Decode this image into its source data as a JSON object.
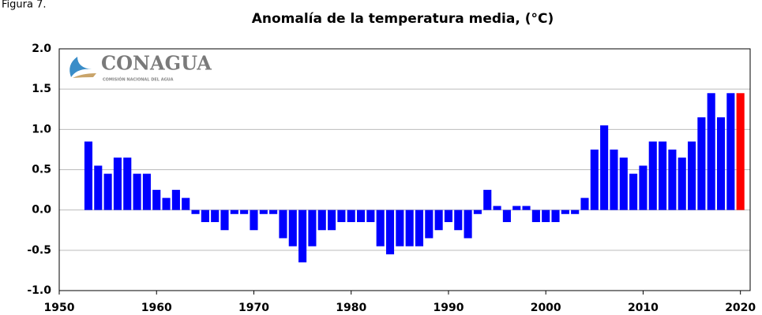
{
  "figure_label": "Figura 7.",
  "logo": {
    "name": "CONAGUA",
    "subtitle": "COMISIÓN NACIONAL DEL AGUA"
  },
  "chart_data": {
    "type": "bar",
    "title": "Anomalía de la temperatura media, (°C)",
    "x": [
      1953,
      1954,
      1955,
      1956,
      1957,
      1958,
      1959,
      1960,
      1961,
      1962,
      1963,
      1964,
      1965,
      1966,
      1967,
      1968,
      1969,
      1970,
      1971,
      1972,
      1973,
      1974,
      1975,
      1976,
      1977,
      1978,
      1979,
      1980,
      1981,
      1982,
      1983,
      1984,
      1985,
      1986,
      1987,
      1988,
      1989,
      1990,
      1991,
      1992,
      1993,
      1994,
      1995,
      1996,
      1997,
      1998,
      1999,
      2000,
      2001,
      2002,
      2003,
      2004,
      2005,
      2006,
      2007,
      2008,
      2009,
      2010,
      2011,
      2012,
      2013,
      2014,
      2015,
      2016,
      2017,
      2018,
      2019,
      2020
    ],
    "values": [
      0.85,
      0.55,
      0.45,
      0.65,
      0.65,
      0.45,
      0.45,
      0.25,
      0.15,
      0.25,
      0.15,
      -0.05,
      -0.15,
      -0.15,
      -0.25,
      -0.05,
      -0.05,
      -0.25,
      -0.05,
      -0.05,
      -0.35,
      -0.45,
      -0.65,
      -0.45,
      -0.25,
      -0.25,
      -0.15,
      -0.15,
      -0.15,
      -0.15,
      -0.45,
      -0.55,
      -0.45,
      -0.45,
      -0.45,
      -0.35,
      -0.25,
      -0.15,
      -0.25,
      -0.35,
      -0.05,
      0.25,
      0.05,
      -0.15,
      0.05,
      0.05,
      -0.15,
      -0.15,
      -0.15,
      -0.05,
      -0.05,
      0.15,
      0.75,
      1.05,
      0.75,
      0.65,
      0.45,
      0.55,
      0.85,
      0.85,
      0.75,
      0.65,
      0.85,
      1.15,
      1.45,
      1.15,
      1.45,
      1.45
    ],
    "color": "#0000ff",
    "highlight": {
      "index": 67,
      "color": "#ff0000"
    },
    "xlim": [
      1950,
      2021
    ],
    "xticks": [
      1950,
      1960,
      1970,
      1980,
      1990,
      2000,
      2010,
      2020
    ],
    "ylim": [
      -1,
      2
    ],
    "yticks": [
      {
        "value": -1,
        "label": "-1.0"
      },
      {
        "value": -0.5,
        "label": "-0.5"
      },
      {
        "value": 0,
        "label": "0.0"
      },
      {
        "value": 0.5,
        "label": "0.5"
      },
      {
        "value": 1,
        "label": "1.0"
      },
      {
        "value": 1.5,
        "label": "1.5"
      },
      {
        "value": 2,
        "label": "2.0"
      }
    ],
    "grid": true
  }
}
